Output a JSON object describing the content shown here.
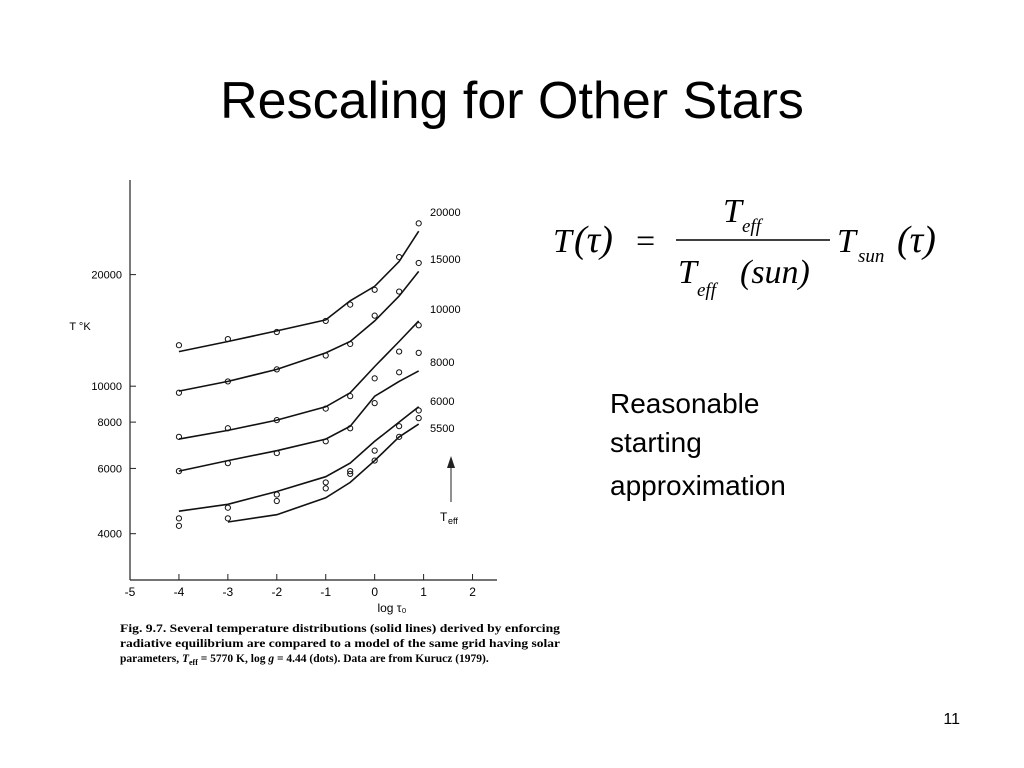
{
  "slide": {
    "title": "Rescaling for Other Stars",
    "text": [
      "Reasonable",
      "starting",
      "approximation"
    ],
    "page_number": "11"
  },
  "equation": {
    "lhs": "T",
    "lhs_arg": "(τ)",
    "equals": "=",
    "numerator": "T",
    "numerator_sub": "eff",
    "denominator": "T",
    "denominator_sub": "eff",
    "denominator_arg": "(sun)",
    "factor": "T",
    "factor_sub": "sun",
    "factor_arg": "(τ)"
  },
  "chart_data": {
    "type": "line",
    "y_label": "T °K",
    "x_label": "log τ₀",
    "log_y": true,
    "xlim": [
      -5,
      2.5
    ],
    "xticks": [
      -5,
      -4,
      -3,
      -2,
      -1,
      0,
      1,
      2
    ],
    "ylim": [
      3000,
      36000
    ],
    "yticks": [
      4000,
      6000,
      8000,
      10000,
      20000
    ],
    "x": [
      -4,
      -3,
      -2,
      -1,
      -0.5,
      0,
      0.5,
      0.9
    ],
    "series": [
      {
        "name": "20000",
        "style": "line",
        "color": "#111",
        "values": [
          12400,
          13200,
          14100,
          15100,
          17000,
          18600,
          21700,
          26200
        ]
      },
      {
        "style": "dots",
        "color": "#111",
        "values": [
          12900,
          13400,
          14000,
          15000,
          16600,
          18200,
          22300,
          27500
        ]
      },
      {
        "name": "15000",
        "style": "line",
        "color": "#111",
        "values": [
          9700,
          10300,
          11100,
          12300,
          13200,
          15000,
          17500,
          20400
        ]
      },
      {
        "style": "dots",
        "color": "#111",
        "values": [
          9600,
          10300,
          11100,
          12100,
          13000,
          15500,
          18000,
          21500
        ]
      },
      {
        "name": "10000",
        "style": "line",
        "color": "#111",
        "values": [
          7200,
          7600,
          8100,
          8800,
          9600,
          11300,
          13200,
          15000
        ]
      },
      {
        "style": "dots",
        "color": "#111",
        "values": [
          7300,
          7700,
          8100,
          8700,
          9400,
          10500,
          12400,
          14600
        ]
      },
      {
        "name": "8000",
        "style": "line",
        "color": "#111",
        "values": [
          5900,
          6300,
          6700,
          7200,
          7800,
          9400,
          10300,
          11000
        ]
      },
      {
        "style": "dots",
        "color": "#111",
        "values": [
          5900,
          6200,
          6600,
          7100,
          7700,
          9000,
          10900,
          12300
        ]
      },
      {
        "name": "6000",
        "style": "line",
        "color": "#111",
        "values": [
          4600,
          4800,
          5200,
          5700,
          6200,
          7100,
          8000,
          8800
        ]
      },
      {
        "style": "dots",
        "color": "#111",
        "values": [
          4400,
          4700,
          5100,
          5500,
          5900,
          6700,
          7800,
          8600
        ]
      },
      {
        "name": "5500",
        "style": "line",
        "color": "#111",
        "values": [
          null,
          4300,
          4500,
          5000,
          5500,
          6300,
          7300,
          7900
        ]
      },
      {
        "style": "dots",
        "color": "#111",
        "values": [
          4200,
          4400,
          4900,
          5300,
          5800,
          6300,
          7300,
          8200
        ]
      }
    ],
    "arrow_label": "T",
    "arrow_label_sub": "eff",
    "caption": [
      "Fig. 9.7. Several temperature distributions (solid lines) derived by enforcing",
      "radiative equilibrium are compared to a model of the same grid having solar"
    ],
    "caption_last": [
      "parameters, ",
      "T",
      "eff",
      " = 5770 K, log ",
      "g",
      " = 4.44 (dots). Data are from Kurucz (1979)."
    ]
  }
}
